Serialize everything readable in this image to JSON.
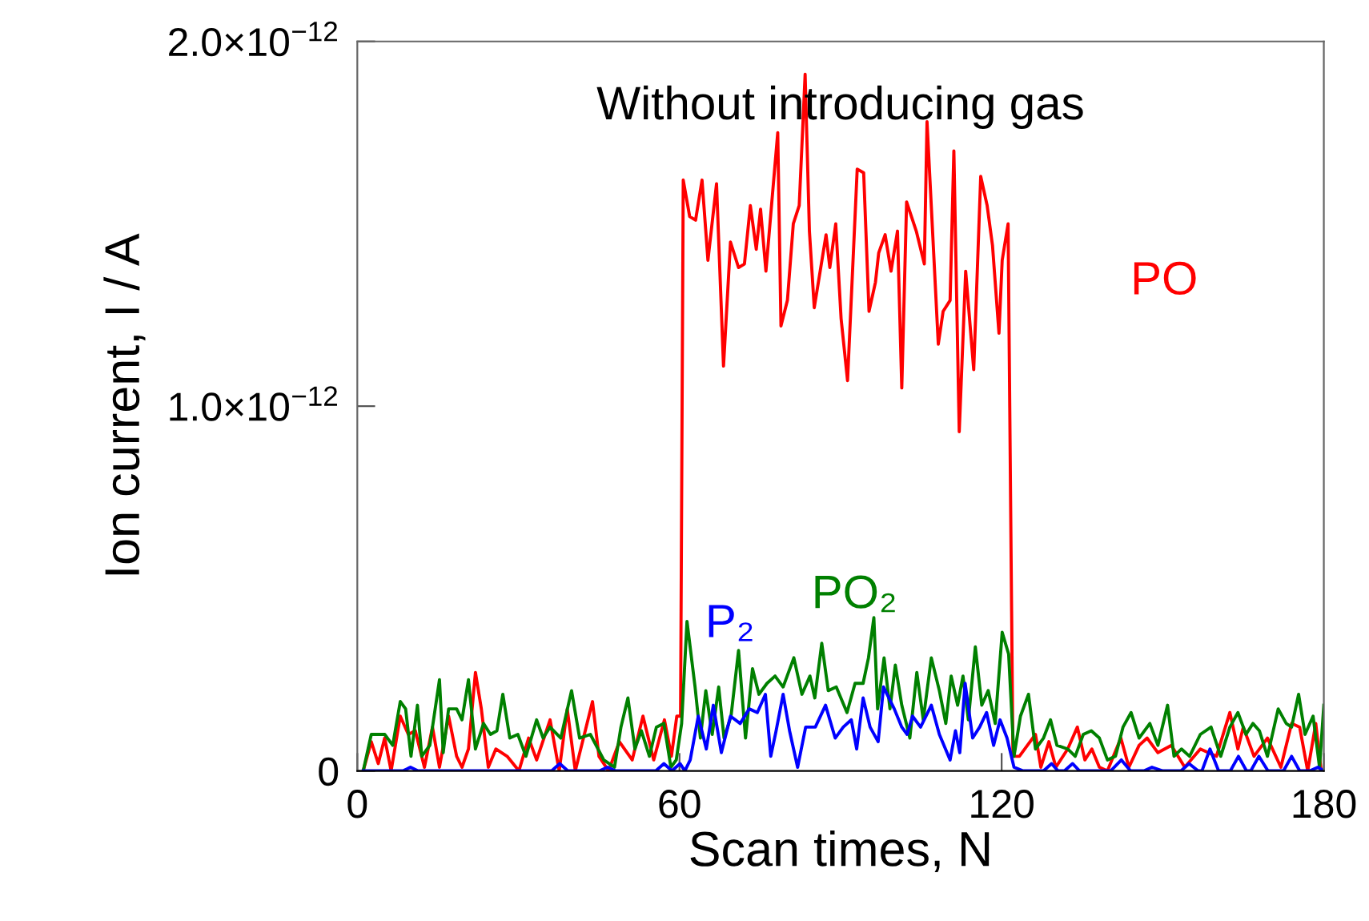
{
  "chart_data": {
    "type": "line",
    "title": "Without introducing gas",
    "xlabel": "Scan times, N",
    "ylabel": "Ion current, I / A",
    "xlim": [
      0,
      180
    ],
    "xticks": [
      0,
      60,
      120,
      180
    ],
    "ylim": [
      0,
      2e-12
    ],
    "yticks": [
      0,
      {
        "value": 1e-12,
        "label": "1.0×10$^{−12}$"
      },
      {
        "value": 2e-12,
        "label": "2.0×10$^{−12}$"
      }
    ],
    "grid": false,
    "legend": false,
    "marker": "none",
    "line_style": "solid",
    "series": [
      {
        "name": "PO",
        "color": "#ff0000",
        "x": [
          1.1,
          2.6,
          3.9,
          5.1,
          6.3,
          8.0,
          9.5,
          10.8,
          12.5,
          14,
          15.3,
          17,
          18.5,
          19.5,
          20.7,
          22,
          23.1,
          24.4,
          25.8,
          27.9,
          30.1,
          31.9,
          33.4,
          35.9,
          37.6,
          39.1,
          40.6,
          43.8,
          45,
          46.8,
          48.8,
          51.2,
          53.2,
          55.2,
          57.2,
          58.5,
          59.5,
          60.2,
          60.7,
          61.9,
          63,
          64.2,
          65.3,
          66.9,
          68.2,
          69.5,
          71,
          72.1,
          73.2,
          74.3,
          75.1,
          76.1,
          78.3,
          78.9,
          80.1,
          81.2,
          82.3,
          83.4,
          84.2,
          85.1,
          87.3,
          88,
          89.1,
          90.1,
          91.3,
          93.1,
          94.3,
          95.3,
          96.5,
          97.1,
          98.3,
          99.4,
          100.6,
          101.4,
          102.3,
          104.1,
          105.6,
          106.1,
          108.2,
          109.1,
          110.4,
          111.1,
          112.1,
          113.3,
          114.8,
          116.1,
          117.3,
          118.3,
          119.5,
          120.1,
          121.2,
          122.1,
          123.3,
          124.8,
          126.3,
          127.3,
          128.8,
          130.1,
          132.3,
          134.1,
          135.5,
          136.8,
          138.2,
          139.7,
          142.2,
          143.7,
          145.6,
          147.1,
          149.1,
          151.6,
          154.1,
          157,
          160,
          162.5,
          164,
          165,
          167,
          169.5,
          172,
          174,
          175.5,
          177,
          178.5,
          179.5
        ],
        "values": [
          0,
          8e-14,
          2e-14,
          9e-14,
          0,
          1.5e-13,
          1e-13,
          1.1e-13,
          1e-14,
          1.2e-13,
          1e-14,
          1.5e-13,
          4e-14,
          1e-14,
          6e-14,
          2.7e-13,
          1.7e-13,
          1e-14,
          6e-14,
          4e-14,
          0,
          9e-14,
          3e-14,
          1.4e-13,
          0,
          1.7e-13,
          0,
          1.9e-13,
          4e-14,
          0,
          8e-14,
          3e-14,
          1.5e-13,
          3e-14,
          1.4e-13,
          4e-14,
          1.5e-13,
          1.5e-13,
          1.62e-12,
          1.52e-12,
          1.51e-12,
          1.62e-12,
          1.4e-12,
          1.61e-12,
          1.11e-12,
          1.45e-12,
          1.38e-12,
          1.39e-12,
          1.55e-12,
          1.43e-12,
          1.54e-12,
          1.37e-12,
          1.75e-12,
          1.22e-12,
          1.29e-12,
          1.5e-12,
          1.55e-12,
          1.91e-12,
          1.48e-12,
          1.27e-12,
          1.47e-12,
          1.38e-12,
          1.5e-12,
          1.24e-12,
          1.07e-12,
          1.65e-12,
          1.64e-12,
          1.26e-12,
          1.34e-12,
          1.42e-12,
          1.47e-12,
          1.37e-12,
          1.48e-12,
          1.05e-12,
          1.56e-12,
          1.48e-12,
          1.39e-12,
          1.78e-12,
          1.17e-12,
          1.26e-12,
          1.29e-12,
          1.7e-12,
          9.3e-13,
          1.37e-12,
          1.1e-12,
          1.63e-12,
          1.55e-12,
          1.44e-12,
          1.2e-12,
          1.4e-12,
          1.5e-12,
          4e-14,
          4e-14,
          7e-14,
          1e-13,
          1e-14,
          8e-14,
          1e-14,
          6e-14,
          1.2e-13,
          3e-14,
          6e-14,
          1e-14,
          0,
          9e-14,
          1e-14,
          7e-14,
          9e-14,
          5e-14,
          7e-14,
          1e-14,
          6e-14,
          4e-14,
          1.6e-13,
          6e-14,
          1.2e-13,
          4e-14,
          9e-14,
          1e-14,
          1.3e-13,
          1.2e-13,
          0,
          1.3e-13,
          0
        ]
      },
      {
        "name": "PO₂",
        "color": "#008000",
        "x": [
          1.1,
          2.6,
          5.1,
          6.6,
          8,
          9,
          10,
          11.2,
          12,
          13.5,
          15.3,
          16,
          17,
          18.5,
          19.5,
          20.7,
          22,
          23.5,
          24.8,
          26,
          27.1,
          28.4,
          29.9,
          31.4,
          33.4,
          34.6,
          35.9,
          37.9,
          39.9,
          41.4,
          43.4,
          45.9,
          47.9,
          49.1,
          50.4,
          51.7,
          52.9,
          54.4,
          55.7,
          57.1,
          58.4,
          59.4,
          60.4,
          61.4,
          62.9,
          63.9,
          64.9,
          66.1,
          67.3,
          68.3,
          69.6,
          71,
          72.3,
          73.6,
          74.8,
          76.3,
          77.8,
          79.3,
          81.3,
          82.8,
          84.3,
          85.2,
          86.5,
          87.7,
          89.2,
          91.2,
          92.7,
          94.2,
          95.2,
          96.2,
          96.9,
          98.1,
          99.2,
          100.2,
          101.4,
          102.9,
          104.2,
          105.4,
          106.9,
          108.4,
          109.6,
          110.6,
          111.8,
          112.8,
          113.8,
          115.1,
          116.3,
          117.5,
          118.8,
          120.1,
          121.3,
          122.3,
          123.5,
          125,
          126.3,
          127.8,
          129.1,
          130.3,
          132.3,
          133.7,
          135.2,
          136.7,
          138.2,
          139.7,
          141.2,
          142.6,
          144.1,
          145.6,
          147.6,
          149.1,
          150.9,
          152.1,
          153.5,
          155,
          157,
          159,
          160.8,
          162.5,
          164,
          165.5,
          166.8,
          168,
          169.5,
          171.5,
          173,
          174,
          175.3,
          176.5,
          178,
          179.2,
          180
        ],
        "values": [
          0,
          1e-13,
          1e-13,
          7e-14,
          1.9e-13,
          1.7e-13,
          4e-14,
          1.8e-13,
          4e-14,
          7e-14,
          2.5e-13,
          5e-14,
          1.7e-13,
          1.7e-13,
          1.4e-13,
          2.5e-13,
          6e-14,
          1.3e-13,
          1e-13,
          1.1e-13,
          2.1e-13,
          9e-14,
          1e-13,
          4e-14,
          1.4e-13,
          9e-14,
          1.2e-13,
          9e-14,
          2.2e-13,
          9e-14,
          1e-13,
          3e-14,
          1e-14,
          1.2e-13,
          2e-13,
          6e-14,
          1.1e-13,
          4e-14,
          1.2e-13,
          1.3e-13,
          1e-14,
          3e-14,
          1.3e-13,
          4.1e-13,
          2.3e-13,
          9e-14,
          2.2e-13,
          1e-13,
          2.3e-13,
          9e-14,
          1.5e-13,
          3.3e-13,
          9e-14,
          2.8e-13,
          2.1e-13,
          2.4e-13,
          2.6e-13,
          2.3e-13,
          3.1e-13,
          2.1e-13,
          2.6e-13,
          2e-13,
          3.5e-13,
          2.2e-13,
          2.3e-13,
          1.6e-13,
          2.4e-13,
          2.4e-13,
          3.1e-13,
          4.2e-13,
          1.7e-13,
          3.1e-13,
          1.7e-13,
          2.9e-13,
          1.8e-13,
          9e-14,
          2.7e-13,
          1.4e-13,
          3.1e-13,
          2.2e-13,
          1.3e-13,
          2.6e-13,
          1.8e-13,
          2.6e-13,
          1.4e-13,
          3.4e-13,
          1.8e-13,
          2.2e-13,
          1.3e-13,
          3.8e-13,
          3.2e-13,
          4e-14,
          1.5e-13,
          2.1e-13,
          6e-14,
          9e-14,
          1.4e-13,
          7e-14,
          6e-14,
          4e-14,
          1e-13,
          1.1e-13,
          9e-14,
          3e-14,
          4e-14,
          1.2e-13,
          1.6e-13,
          9e-14,
          1.3e-13,
          7e-14,
          1.8e-13,
          4e-14,
          6e-14,
          4e-14,
          1e-13,
          1.2e-13,
          4e-14,
          1.2e-13,
          1.6e-13,
          1e-13,
          1.3e-13,
          1.1e-13,
          4e-14,
          1.7e-13,
          1.3e-13,
          1.2e-13,
          2.1e-13,
          1e-13,
          1.5e-13,
          1e-14,
          1.8e-13
        ]
      },
      {
        "name": "P₂",
        "color": "#0000ff",
        "x": [
          1.1,
          8.5,
          9.9,
          11.3,
          36.2,
          37.7,
          39.2,
          45.1,
          46.6,
          48.1,
          55.6,
          57.1,
          58.6,
          60.1,
          61,
          62,
          63.5,
          65,
          66.3,
          67.8,
          69.5,
          71.3,
          73,
          74.5,
          76,
          77,
          78,
          79.3,
          80.5,
          82,
          83.5,
          85.3,
          87.2,
          89,
          90.5,
          92,
          93,
          94.2,
          95.5,
          97,
          98,
          100,
          101.4,
          102.4,
          103.4,
          104.9,
          106.9,
          108.4,
          110.4,
          111.4,
          112.2,
          113.2,
          114.6,
          115.9,
          117.2,
          118.5,
          119.7,
          121,
          122.3,
          124,
          127.8,
          129.3,
          130.5,
          131.7,
          133.2,
          134.5,
          138.8,
          140.3,
          142.3,
          144,
          146.5,
          148,
          150,
          153.4,
          154.9,
          156.6,
          157.3,
          158.8,
          160.4,
          162.6,
          164.1,
          165.6,
          166.4,
          167.9,
          169.6,
          172.5,
          174,
          175.5,
          177.4,
          178.9,
          180
        ],
        "values": [
          0,
          0,
          1e-14,
          0,
          0,
          2e-14,
          0,
          0,
          1e-14,
          0,
          0,
          2e-14,
          0,
          2e-14,
          0,
          3e-14,
          1.5e-13,
          6e-14,
          1.8e-13,
          5e-14,
          1.5e-13,
          1.3e-13,
          1.7e-13,
          1.6e-13,
          2.1e-13,
          4e-14,
          1.1e-13,
          2.1e-13,
          1.1e-13,
          1e-14,
          1.2e-13,
          1.2e-13,
          1.8e-13,
          9e-14,
          1.2e-13,
          1.4e-13,
          6e-14,
          2e-13,
          1.2e-13,
          8e-14,
          2.3e-13,
          1.7e-13,
          1.2e-13,
          1e-13,
          1.5e-13,
          1.2e-13,
          1.8e-13,
          1e-13,
          3e-14,
          1.1e-13,
          5e-14,
          2.4e-13,
          9e-14,
          1.2e-13,
          1.6e-13,
          7e-14,
          1.4e-13,
          9e-14,
          1e-14,
          0,
          0,
          2e-14,
          0,
          0,
          2e-14,
          0,
          0,
          0,
          3e-14,
          0,
          0,
          1e-14,
          0,
          0,
          2e-14,
          0,
          0,
          6e-14,
          0,
          0,
          4e-14,
          0,
          0,
          4e-14,
          0,
          0,
          4e-14,
          0,
          0,
          1e-14,
          0
        ]
      }
    ]
  }
}
